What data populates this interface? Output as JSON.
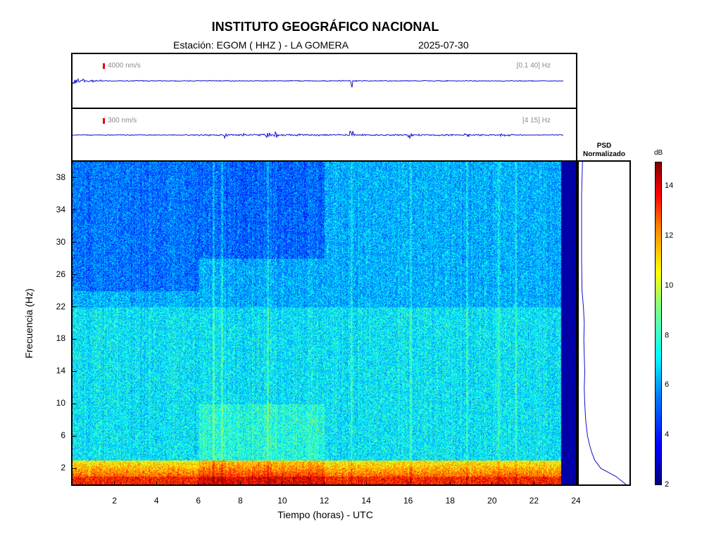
{
  "header": {
    "title": "INSTITUTO GEOGRÁFICO NACIONAL",
    "station": "Estación:  EGOM ( HHZ ) - LA GOMERA",
    "date": "2025-07-30"
  },
  "traces": [
    {
      "amplitude_label": "4000 nm/s",
      "band_label": "[0.1 40] Hz"
    },
    {
      "amplitude_label": "300 nm/s",
      "band_label": "[4 15] Hz"
    }
  ],
  "psd": {
    "title_line1": "PSD",
    "title_line2": "Normalizado"
  },
  "colorbar": {
    "unit": "dB",
    "min": 2,
    "max": 15,
    "ticks": [
      "2",
      "4",
      "6",
      "8",
      "10",
      "12",
      "14"
    ]
  },
  "colors": {
    "line": "#1010d0",
    "scale_bar": "#e00000"
  },
  "chart_data": {
    "type": "heatmap",
    "title": "INSTITUTO GEOGRÁFICO NACIONAL",
    "xlabel": "Tiempo (horas) - UTC",
    "ylabel": "Frecuencia  (Hz)",
    "xlim": [
      0,
      24
    ],
    "ylim": [
      0,
      40
    ],
    "x_ticks": [
      "2",
      "4",
      "6",
      "8",
      "10",
      "12",
      "14",
      "16",
      "18",
      "20",
      "22",
      "24"
    ],
    "y_ticks": [
      "2",
      "6",
      "10",
      "14",
      "18",
      "22",
      "26",
      "30",
      "34",
      "38"
    ],
    "data_end_hour": 23.3,
    "colorscale": "jet",
    "z_unit": "dB",
    "zlim": [
      2,
      15
    ],
    "psd_normalized": {
      "freq_hz": [
        0,
        1,
        2,
        3,
        4,
        5,
        6,
        7,
        8,
        10,
        12,
        14,
        16,
        18,
        20,
        22,
        24,
        28,
        32,
        36,
        40
      ],
      "value": [
        1.0,
        0.78,
        0.45,
        0.32,
        0.25,
        0.2,
        0.16,
        0.14,
        0.12,
        0.1,
        0.09,
        0.1,
        0.09,
        0.08,
        0.09,
        0.07,
        0.04,
        0.03,
        0.03,
        0.03,
        0.05
      ]
    }
  }
}
